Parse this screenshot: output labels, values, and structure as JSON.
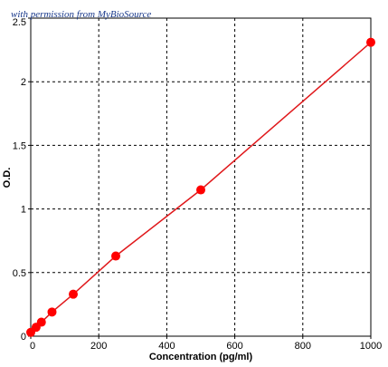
{
  "watermark": "with permission from MyBioSource",
  "chart_data": {
    "type": "scatter",
    "xlabel": "Concentration (pg/ml)",
    "ylabel": "O.D.",
    "xlim": [
      0,
      1000
    ],
    "ylim": [
      0,
      2.5
    ],
    "x_ticks": [
      0,
      200,
      400,
      600,
      800,
      1000
    ],
    "y_ticks": [
      0,
      0.5,
      1,
      1.5,
      2,
      2.5
    ],
    "x_tick_labels": [
      "0",
      "200",
      "400",
      "600",
      "800",
      "1000"
    ],
    "y_tick_labels": [
      "0",
      "0.5",
      "1",
      "1.5",
      "2",
      "2.5"
    ],
    "grid": true,
    "series": [
      {
        "x": [
          0,
          15.6,
          31.25,
          62.5,
          125,
          250,
          500,
          1000
        ],
        "y": [
          0.03,
          0.07,
          0.11,
          0.19,
          0.33,
          0.63,
          1.15,
          2.31
        ],
        "fit_line": true
      }
    ],
    "colors": {
      "points": "#ff0000",
      "line": "#e0181b",
      "grid": "#000000",
      "watermark": "#1a3a8c"
    }
  }
}
